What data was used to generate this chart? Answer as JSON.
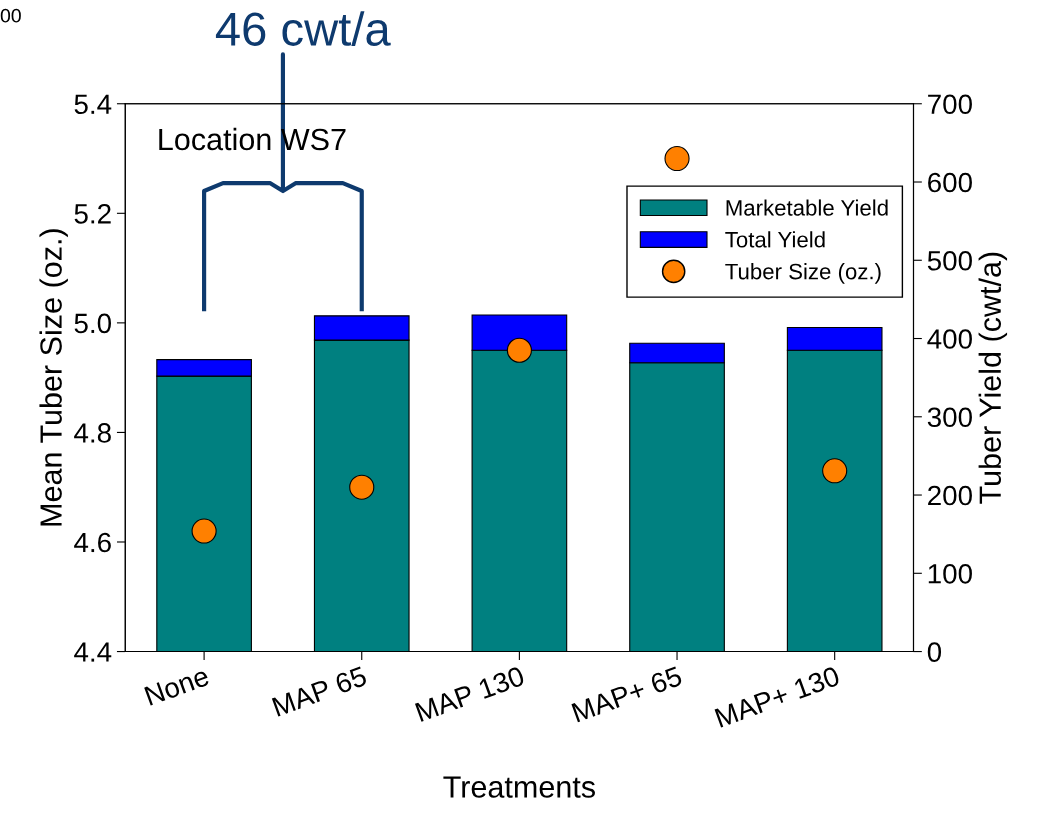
{
  "chart_data": {
    "type": "bar",
    "stacked": true,
    "xlabel": "Treatments",
    "ylabel": "Mean Tuber Size (oz.)",
    "y2label": "Tuber Yield (cwt/a)",
    "categories": [
      "None",
      "MAP 65",
      "MAP 130",
      "MAP+ 65",
      "MAP+ 130"
    ],
    "series": [
      {
        "name": "Marketable Yield",
        "color": "#008080",
        "axis": "y2",
        "values": [
          352,
          398,
          385,
          369,
          385
        ]
      },
      {
        "name": "Total Yield",
        "color": "#0000ff",
        "axis": "y2",
        "values": [
          21,
          31,
          45,
          25,
          29
        ]
      },
      {
        "name": "Tuber Size (oz.)",
        "type": "scatter",
        "color": "#ff8000",
        "marker": "circle",
        "values": [
          4.62,
          4.7,
          4.95,
          5.3,
          4.73
        ]
      }
    ],
    "ylim": [
      4.4,
      5.4
    ],
    "yticks": [
      {
        "value": 4.4,
        "label": "4.4"
      },
      {
        "value": 4.6,
        "label": "4.6"
      },
      {
        "value": 4.8,
        "label": "4.8"
      },
      {
        "value": 5.0,
        "label": "5.0"
      },
      {
        "value": 5.2,
        "label": "5.2"
      },
      {
        "value": 5.4,
        "label": "5.4"
      }
    ],
    "y2lim": [
      0,
      700
    ],
    "y2ticks": [
      0,
      100,
      200,
      300,
      400,
      500,
      600,
      700
    ],
    "annotations": [
      "Location WS7",
      "46 cwt/a",
      "00"
    ],
    "legend": "top right",
    "grid": false
  }
}
